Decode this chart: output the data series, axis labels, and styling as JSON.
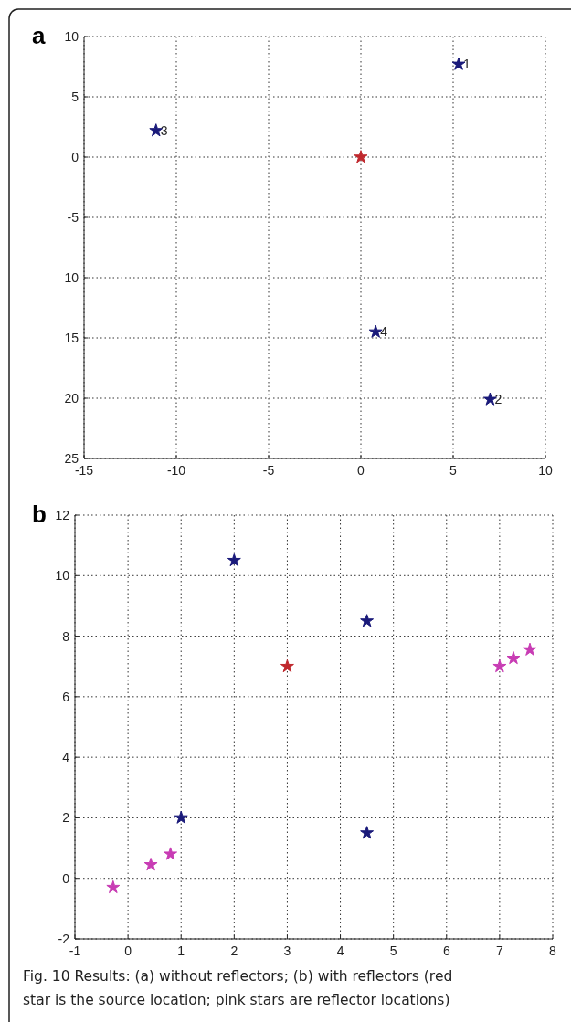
{
  "chart_data": [
    {
      "type": "scatter",
      "title": "a",
      "xlim": [
        -15,
        10
      ],
      "xticks": [
        -15,
        -10,
        -5,
        0,
        5,
        10
      ],
      "ylim": [
        -25,
        10
      ],
      "yticks": [
        {
          "value": -25,
          "label": "25"
        },
        {
          "value": -20,
          "label": "20"
        },
        {
          "value": -15,
          "label": "15"
        },
        {
          "value": -10,
          "label": "10"
        },
        -5,
        0,
        5,
        10
      ],
      "grid": true,
      "marker": "star",
      "series": [
        {
          "color": "#1a1a7a",
          "x": [
            5.3,
            7.0,
            -11.1,
            0.8
          ],
          "values": [
            7.7,
            -20.1,
            2.2,
            -14.5
          ]
        },
        {
          "color": "#c0282d",
          "x": [
            0
          ],
          "values": [
            0
          ]
        }
      ],
      "annotations": [
        {
          "text": "1",
          "x": 5.3,
          "y": 7.7
        },
        {
          "text": "2",
          "x": 7.0,
          "y": -20.1
        },
        {
          "text": "3",
          "x": -11.1,
          "y": 2.2
        },
        {
          "text": "4",
          "x": 0.8,
          "y": -14.5
        }
      ]
    },
    {
      "type": "scatter",
      "title": "b",
      "xlim": [
        -1,
        8
      ],
      "xticks": [
        -1,
        0,
        1,
        2,
        3,
        4,
        5,
        6,
        7,
        8
      ],
      "ylim": [
        -2,
        12
      ],
      "yticks": [
        -2,
        0,
        2,
        4,
        6,
        8,
        10,
        12
      ],
      "grid": true,
      "marker": "star",
      "series": [
        {
          "color": "#1a1a7a",
          "x": [
            2,
            4.5,
            1,
            4.5
          ],
          "values": [
            10.5,
            8.5,
            2,
            1.5
          ]
        },
        {
          "color": "#c0282d",
          "x": [
            3
          ],
          "values": [
            7
          ]
        },
        {
          "color": "#c83cb4",
          "x": [
            7,
            7.26,
            7.57,
            -0.28,
            0.43,
            0.8
          ],
          "values": [
            7,
            7.27,
            7.55,
            -0.3,
            0.45,
            0.8
          ]
        }
      ],
      "annotations": [
        "Fig. 10 Results: (a) without reflectors; (b) with reflectors (red star is the source location; pink stars are reflector locations)"
      ]
    }
  ]
}
